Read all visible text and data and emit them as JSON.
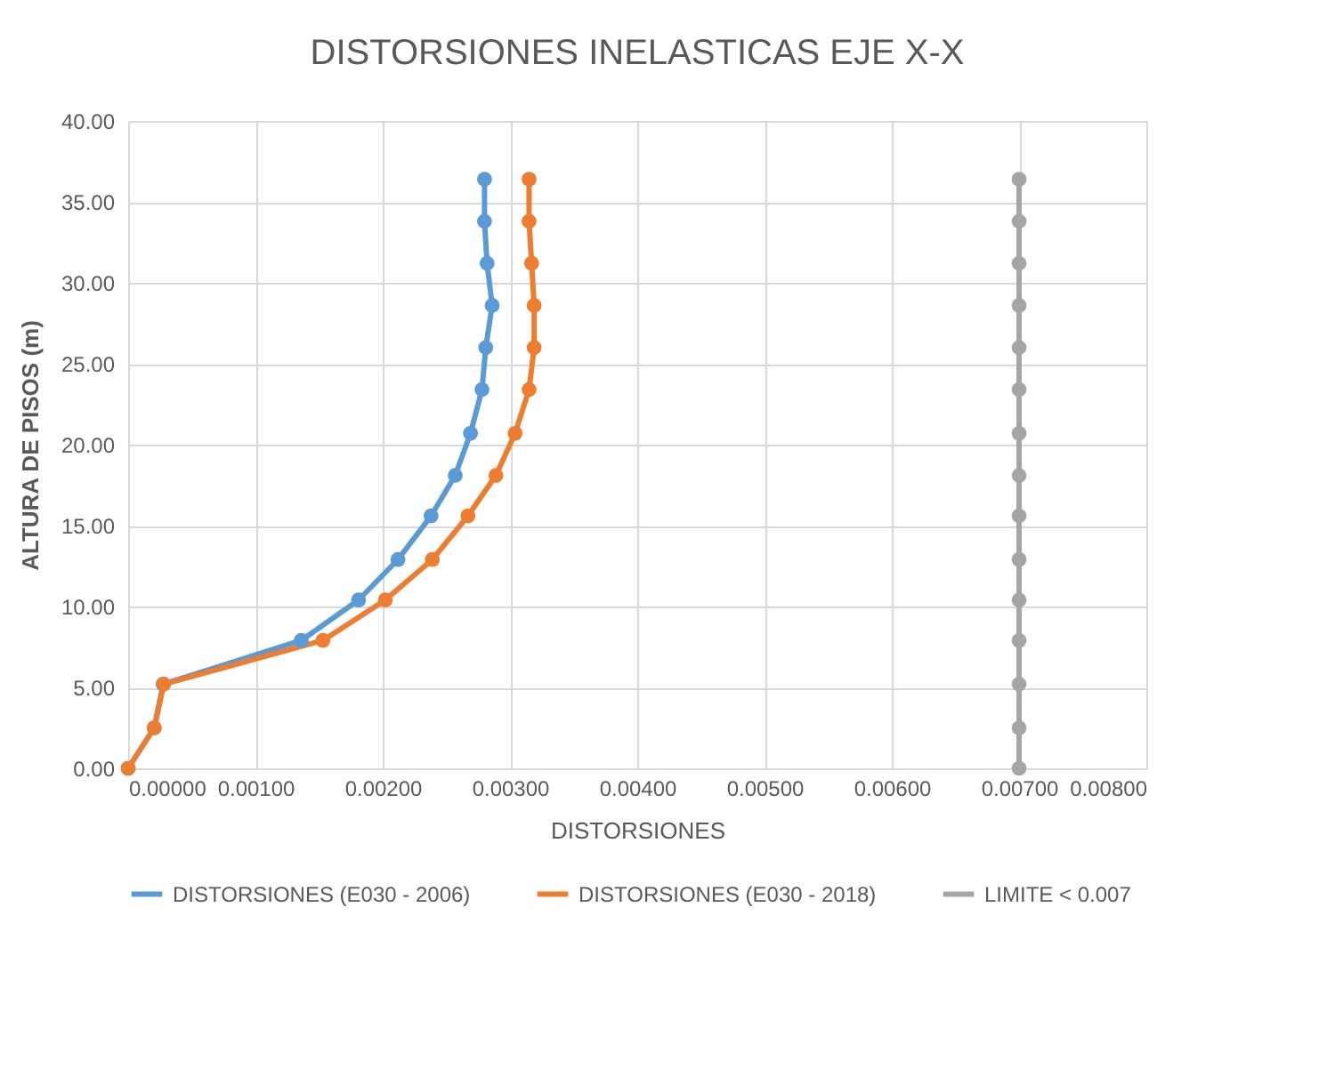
{
  "chart_data": {
    "type": "line",
    "title": "DISTORSIONES INELASTICAS EJE X-X",
    "xlabel": "DISTORSIONES",
    "ylabel": "ALTURA DE PISOS (m)",
    "series": [
      {
        "name": "DISTORSIONES (E030 - 2006)",
        "color": "#5b9bd5",
        "x": [
          0,
          0.000205,
          0.000274,
          0.00136,
          0.00181,
          0.00212,
          0.00238,
          0.00257,
          0.00269,
          0.00278,
          0.00281,
          0.00286,
          0.00282,
          0.0028,
          0.0028
        ],
        "values": [
          0,
          2.5,
          5.2,
          7.9,
          10.4,
          12.9,
          15.6,
          18.1,
          20.7,
          23.4,
          26.0,
          28.6,
          31.2,
          33.8,
          36.4
        ]
      },
      {
        "name": "DISTORSIONES (E030 - 2018)",
        "color": "#ed7d31",
        "x": [
          0,
          0.000205,
          0.00028,
          0.00153,
          0.00202,
          0.00239,
          0.00267,
          0.00289,
          0.00304,
          0.00315,
          0.00319,
          0.00319,
          0.00317,
          0.00315,
          0.00315
        ],
        "values": [
          0,
          2.5,
          5.2,
          7.9,
          10.4,
          12.9,
          15.6,
          18.1,
          20.7,
          23.4,
          26.0,
          28.6,
          31.2,
          33.8,
          36.4
        ]
      },
      {
        "name": "LIMITE < 0.007",
        "color": "#a5a5a5",
        "x": [
          0.007,
          0.007,
          0.007,
          0.007,
          0.007,
          0.007,
          0.007,
          0.007,
          0.007,
          0.007,
          0.007,
          0.007,
          0.007,
          0.007,
          0.007
        ],
        "values": [
          0,
          2.5,
          5.2,
          7.9,
          10.4,
          12.9,
          15.6,
          18.1,
          20.7,
          23.4,
          26.0,
          28.6,
          31.2,
          33.8,
          36.4
        ]
      }
    ],
    "xlim": [
      0,
      0.008
    ],
    "xticks": [
      {
        "value": 0,
        "label": "0.00000"
      },
      {
        "value": 0.001,
        "label": "0.00100"
      },
      {
        "value": 0.002,
        "label": "0.00200"
      },
      {
        "value": 0.003,
        "label": "0.00300"
      },
      {
        "value": 0.004,
        "label": "0.00400"
      },
      {
        "value": 0.005,
        "label": "0.00500"
      },
      {
        "value": 0.006,
        "label": "0.00600"
      },
      {
        "value": 0.007,
        "label": "0.00700"
      },
      {
        "value": 0.008,
        "label": "0.00800"
      }
    ],
    "ylim": [
      0,
      40
    ],
    "yticks": [
      {
        "value": 0,
        "label": "0.00"
      },
      {
        "value": 5,
        "label": "5.00"
      },
      {
        "value": 10,
        "label": "10.00"
      },
      {
        "value": 15,
        "label": "15.00"
      },
      {
        "value": 20,
        "label": "20.00"
      },
      {
        "value": 25,
        "label": "25.00"
      },
      {
        "value": 30,
        "label": "30.00"
      },
      {
        "value": 35,
        "label": "35.00"
      },
      {
        "value": 40,
        "label": "40.00"
      }
    ],
    "grid": true,
    "legend": "bottom",
    "marker": "circle",
    "line_style": "solid"
  }
}
